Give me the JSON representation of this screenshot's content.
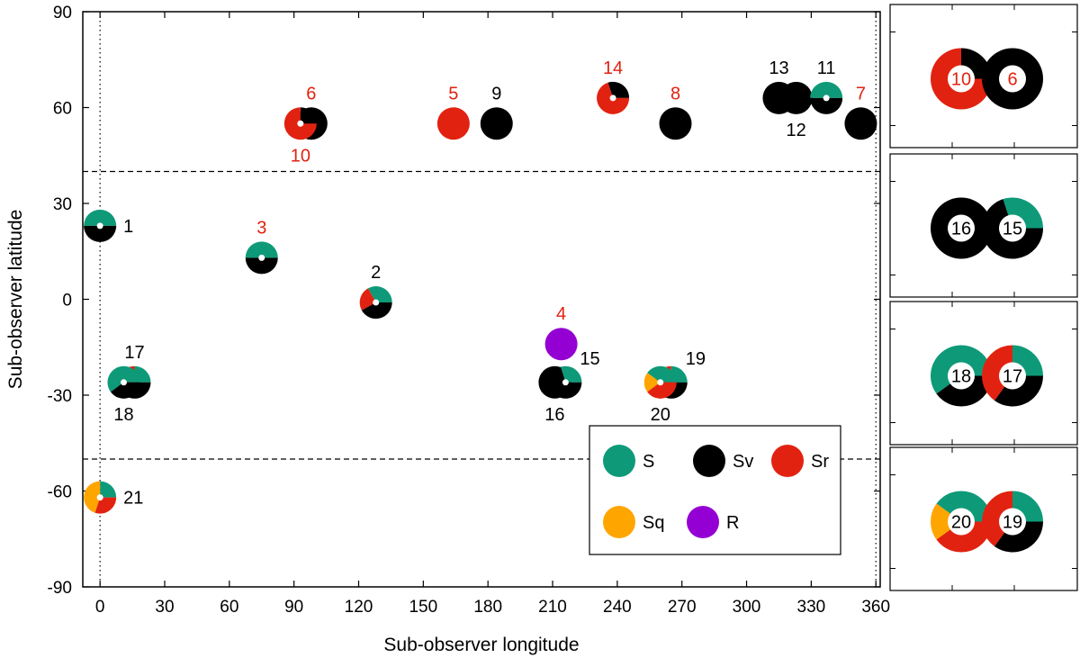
{
  "chart_data": {
    "type": "scatter",
    "xlabel": "Sub-observer longitude",
    "ylabel": "Sub-observer latitude",
    "xlim": [
      -8,
      362
    ],
    "ylim": [
      -90,
      90
    ],
    "xticks": [
      0,
      30,
      60,
      90,
      120,
      150,
      180,
      210,
      240,
      270,
      300,
      330,
      360
    ],
    "yticks": [
      90,
      60,
      30,
      0,
      -30,
      -60,
      -90
    ],
    "xtick_labels": [
      "0",
      "30",
      "60",
      "90",
      "120",
      "150",
      "180",
      "210",
      "240",
      "270",
      "300",
      "330",
      "360"
    ],
    "ytick_labels": [
      "90",
      "60",
      "30",
      "0",
      "-30",
      "-60",
      "-90"
    ],
    "dotted_verticals": [
      0,
      360
    ],
    "dashed_horizontals": [
      40,
      -50
    ],
    "class_colors": {
      "S": "#0e9a78",
      "Sv": "#000000",
      "Sr": "#e22211",
      "Sq": "#ffa500",
      "R": "#9400d3"
    },
    "legend": [
      {
        "name": "S",
        "label": "S"
      },
      {
        "name": "Sv",
        "label": "Sv"
      },
      {
        "name": "Sr",
        "label": "Sr"
      },
      {
        "name": "Sq",
        "label": "Sq"
      },
      {
        "name": "R",
        "label": "R"
      }
    ],
    "label_colors": {
      "black": "#000000",
      "red": "#e22211"
    },
    "points": [
      {
        "id": "1",
        "label": "1",
        "lon": 0,
        "lat": 23,
        "hole": true,
        "label_color": "black",
        "label_pos": "right",
        "segs": [
          {
            "c": "S",
            "f": 0.5
          },
          {
            "c": "Sv",
            "f": 0.5
          }
        ]
      },
      {
        "id": "3",
        "label": "3",
        "lon": 75,
        "lat": 13,
        "hole": true,
        "label_color": "red",
        "label_pos": "top",
        "segs": [
          {
            "c": "S",
            "f": 0.5
          },
          {
            "c": "Sv",
            "f": 0.5
          }
        ]
      },
      {
        "id": "2",
        "label": "2",
        "lon": 128,
        "lat": -1,
        "hole": true,
        "label_color": "black",
        "label_pos": "top",
        "segs": [
          {
            "c": "S",
            "f": 0.33
          },
          {
            "c": "Sr",
            "f": 0.25
          },
          {
            "c": "Sv",
            "f": 0.42
          }
        ]
      },
      {
        "id": "6",
        "label": "6",
        "lon": 98,
        "lat": 55,
        "hole": false,
        "label_color": "red",
        "label_pos": "top",
        "segs": [
          {
            "c": "Sv",
            "f": 1
          }
        ]
      },
      {
        "id": "10",
        "label": "10",
        "lon": 93,
        "lat": 55,
        "hole": true,
        "label_color": "red",
        "label_pos": "bottom",
        "segs": [
          {
            "c": "Sv",
            "f": 0.25
          },
          {
            "c": "Sr",
            "f": 0.75
          }
        ]
      },
      {
        "id": "5",
        "label": "5",
        "lon": 164,
        "lat": 55,
        "hole": false,
        "label_color": "red",
        "label_pos": "top",
        "segs": [
          {
            "c": "Sr",
            "f": 1
          }
        ]
      },
      {
        "id": "9",
        "label": "9",
        "lon": 184,
        "lat": 55,
        "hole": false,
        "label_color": "black",
        "label_pos": "top",
        "segs": [
          {
            "c": "Sv",
            "f": 1
          }
        ]
      },
      {
        "id": "14",
        "label": "14",
        "lon": 238,
        "lat": 63,
        "hole": true,
        "label_color": "red",
        "label_pos": "top",
        "segs": [
          {
            "c": "Sv",
            "f": 0.3
          },
          {
            "c": "Sr",
            "f": 0.7
          }
        ]
      },
      {
        "id": "8",
        "label": "8",
        "lon": 267,
        "lat": 55,
        "hole": false,
        "label_color": "red",
        "label_pos": "top",
        "segs": [
          {
            "c": "Sv",
            "f": 1
          }
        ]
      },
      {
        "id": "13",
        "label": "13",
        "lon": 315,
        "lat": 63,
        "hole": false,
        "label_color": "black",
        "label_pos": "top",
        "segs": [
          {
            "c": "Sv",
            "f": 1
          }
        ]
      },
      {
        "id": "12",
        "label": "12",
        "lon": 323,
        "lat": 63,
        "hole": false,
        "label_color": "black",
        "label_pos": "bottom",
        "segs": [
          {
            "c": "Sv",
            "f": 1
          }
        ]
      },
      {
        "id": "11",
        "label": "11",
        "lon": 337,
        "lat": 63,
        "hole": true,
        "label_color": "black",
        "label_pos": "top",
        "segs": [
          {
            "c": "S",
            "f": 0.5
          },
          {
            "c": "Sv",
            "f": 0.5
          }
        ]
      },
      {
        "id": "7",
        "label": "7",
        "lon": 353,
        "lat": 55,
        "hole": false,
        "label_color": "red",
        "label_pos": "top",
        "segs": [
          {
            "c": "Sv",
            "f": 1
          }
        ]
      },
      {
        "id": "4",
        "label": "4",
        "lon": 214,
        "lat": -14,
        "hole": false,
        "label_color": "red",
        "label_pos": "top",
        "segs": [
          {
            "c": "R",
            "f": 1
          }
        ]
      },
      {
        "id": "17",
        "label": "17",
        "lon": 16,
        "lat": -26,
        "hole": false,
        "label_color": "black",
        "label_pos": "top",
        "segs": [
          {
            "c": "S",
            "f": 0.25
          },
          {
            "c": "Sr",
            "f": 0.4
          },
          {
            "c": "Sv",
            "f": 0.35
          }
        ]
      },
      {
        "id": "18",
        "label": "18",
        "lon": 11,
        "lat": -26,
        "hole": true,
        "label_color": "black",
        "label_pos": "bottom",
        "segs": [
          {
            "c": "S",
            "f": 0.6
          },
          {
            "c": "Sv",
            "f": 0.4
          }
        ]
      },
      {
        "id": "16",
        "label": "16",
        "lon": 211,
        "lat": -26,
        "hole": false,
        "label_color": "black",
        "label_pos": "bottom",
        "segs": [
          {
            "c": "Sv",
            "f": 1
          }
        ]
      },
      {
        "id": "15",
        "label": "15",
        "lon": 216,
        "lat": -26,
        "hole": true,
        "label_color": "black",
        "label_pos": "topright",
        "segs": [
          {
            "c": "S",
            "f": 0.3
          },
          {
            "c": "Sv",
            "f": 0.7
          }
        ]
      },
      {
        "id": "19",
        "label": "19",
        "lon": 265,
        "lat": -26,
        "hole": false,
        "label_color": "black",
        "label_pos": "topright",
        "segs": [
          {
            "c": "S",
            "f": 0.25
          },
          {
            "c": "Sr",
            "f": 0.4
          },
          {
            "c": "Sv",
            "f": 0.35
          }
        ]
      },
      {
        "id": "20",
        "label": "20",
        "lon": 260,
        "lat": -26,
        "hole": true,
        "label_color": "black",
        "label_pos": "bottom",
        "segs": [
          {
            "c": "S",
            "f": 0.4
          },
          {
            "c": "Sq",
            "f": 0.2
          },
          {
            "c": "Sr",
            "f": 0.4
          }
        ]
      },
      {
        "id": "21",
        "label": "21",
        "lon": 0,
        "lat": -62,
        "hole": true,
        "label_color": "black",
        "label_pos": "right",
        "segs": [
          {
            "c": "S",
            "f": 0.25
          },
          {
            "c": "Sq",
            "f": 0.45
          },
          {
            "c": "Sr",
            "f": 0.3
          }
        ]
      }
    ],
    "insets": [
      {
        "id": "inset-1",
        "left": {
          "label": "10",
          "segs": [
            {
              "c": "Sv",
              "f": 0.25
            },
            {
              "c": "Sr",
              "f": 0.75
            }
          ]
        },
        "right": {
          "label": "6",
          "segs": [
            {
              "c": "Sv",
              "f": 1
            }
          ]
        },
        "label_color": "red"
      },
      {
        "id": "inset-2",
        "left": {
          "label": "16",
          "segs": [
            {
              "c": "Sv",
              "f": 1
            }
          ]
        },
        "right": {
          "label": "15",
          "segs": [
            {
              "c": "S",
              "f": 0.3
            },
            {
              "c": "Sv",
              "f": 0.7
            }
          ]
        },
        "label_color": "black"
      },
      {
        "id": "inset-3",
        "left": {
          "label": "18",
          "segs": [
            {
              "c": "S",
              "f": 0.6
            },
            {
              "c": "Sv",
              "f": 0.4
            }
          ]
        },
        "right": {
          "label": "17",
          "segs": [
            {
              "c": "S",
              "f": 0.25
            },
            {
              "c": "Sr",
              "f": 0.4
            },
            {
              "c": "Sv",
              "f": 0.35
            }
          ]
        },
        "label_color": "black"
      },
      {
        "id": "inset-4",
        "left": {
          "label": "20",
          "segs": [
            {
              "c": "S",
              "f": 0.4
            },
            {
              "c": "Sq",
              "f": 0.2
            },
            {
              "c": "Sr",
              "f": 0.4
            }
          ]
        },
        "right": {
          "label": "19",
          "segs": [
            {
              "c": "S",
              "f": 0.25
            },
            {
              "c": "Sr",
              "f": 0.4
            },
            {
              "c": "Sv",
              "f": 0.35
            }
          ]
        },
        "label_color": "black"
      }
    ]
  }
}
